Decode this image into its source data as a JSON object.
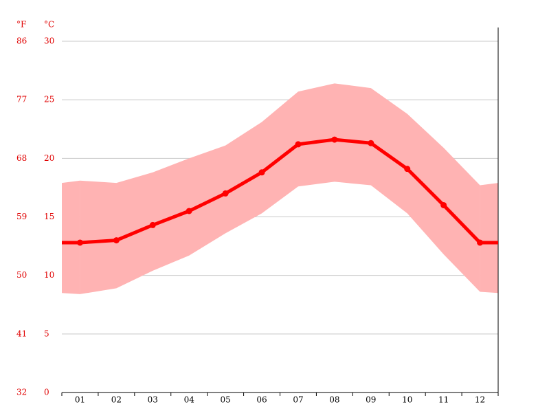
{
  "chart_data": {
    "type": "line",
    "y_label": "°C",
    "y2_label": "°F",
    "categories": [
      "01",
      "02",
      "03",
      "04",
      "05",
      "06",
      "07",
      "08",
      "09",
      "10",
      "11",
      "12"
    ],
    "values": [
      12.8,
      13.0,
      14.3,
      15.5,
      17.0,
      18.8,
      21.2,
      21.6,
      21.3,
      19.1,
      16.0,
      12.8
    ],
    "color": "#ff0000",
    "band": {
      "high": [
        18.1,
        17.9,
        18.8,
        20.0,
        21.1,
        23.1,
        25.7,
        26.4,
        26.0,
        23.8,
        20.9,
        17.7
      ],
      "low": [
        8.4,
        8.9,
        10.4,
        11.7,
        13.6,
        15.3,
        17.6,
        18.0,
        17.7,
        15.3,
        11.8,
        8.6
      ],
      "color": "#ffb3b3"
    },
    "ylim": [
      0,
      30
    ],
    "yticks": [
      0,
      5,
      10,
      15,
      20,
      25,
      30
    ],
    "y2lim": [
      32,
      86
    ],
    "y2ticks": [
      32,
      41,
      50,
      59,
      68,
      77,
      86
    ],
    "grid": true
  }
}
